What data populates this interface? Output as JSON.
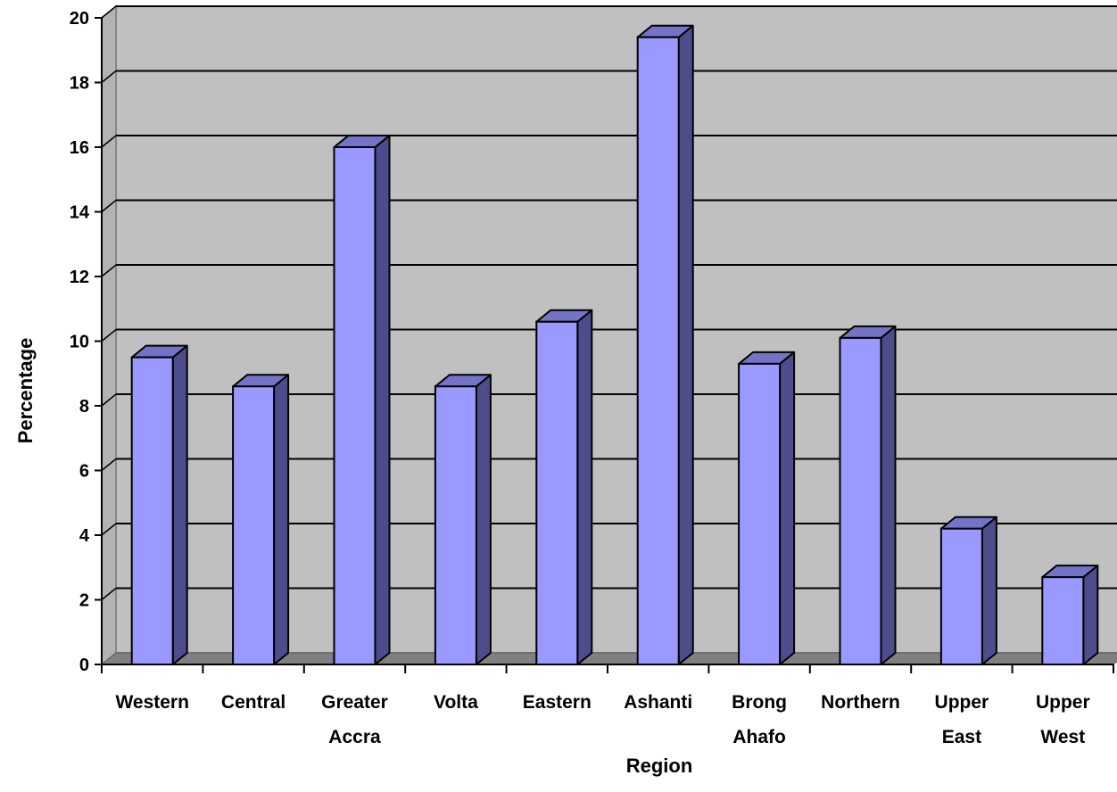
{
  "chart_data": {
    "type": "bar",
    "title": "",
    "xlabel": "Region",
    "ylabel": "Percentage",
    "ylim": [
      0,
      20
    ],
    "yticks": [
      0,
      2,
      4,
      6,
      8,
      10,
      12,
      14,
      16,
      18,
      20
    ],
    "grid": true,
    "legend": "none",
    "categories": [
      [
        "Western"
      ],
      [
        "Central"
      ],
      [
        "Greater",
        "Accra"
      ],
      [
        "Volta"
      ],
      [
        "Eastern"
      ],
      [
        "Ashanti"
      ],
      [
        "Brong",
        "Ahafo"
      ],
      [
        "Northern"
      ],
      [
        "Upper",
        "East"
      ],
      [
        "Upper",
        "West"
      ]
    ],
    "values": [
      9.5,
      8.6,
      16.0,
      8.6,
      10.6,
      19.4,
      9.3,
      10.1,
      4.2,
      2.7
    ],
    "colors": {
      "bar_front": "#9999FF",
      "bar_side": "#4D4D8C",
      "bar_top": "#7373C8",
      "wall": "#C0C0C0",
      "floor": "#808080"
    }
  }
}
